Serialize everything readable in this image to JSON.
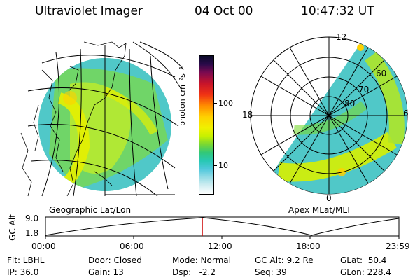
{
  "header": {
    "instrument": "Ultraviolet Imager",
    "date": "04 Oct 00",
    "time": "10:47:32 UT"
  },
  "colorbar": {
    "unit_label": "photon cm⁻²s⁻¹",
    "ticks": [
      "100",
      "10"
    ]
  },
  "left_panel": {
    "caption": "Geographic Lat/Lon"
  },
  "right_panel": {
    "caption": "Apex MLat/MLT",
    "mlt_labels": [
      "12",
      "18",
      "6",
      "0"
    ],
    "mlat_labels": [
      "60",
      "70",
      "80"
    ]
  },
  "altitude_plot": {
    "ylabel": "GC Alt",
    "y_ticks": [
      "9.0",
      "1.8"
    ],
    "x_ticks": [
      "00:00",
      "06:00",
      "12:00",
      "18:00",
      "23:59"
    ],
    "marker_color": "#cc0000"
  },
  "status": {
    "flt": "Flt: LBHL",
    "ip": "IP: 36.0",
    "door": "Door: Closed",
    "gain": "Gain: 13",
    "mode": "Mode: Normal",
    "dsp": "Dsp:   -2.2",
    "gcalt": "GC Alt: 9.2 Re",
    "seq": "Seq: 39",
    "glat": "GLat:  50.4",
    "glon": "GLon: 228.4"
  }
}
